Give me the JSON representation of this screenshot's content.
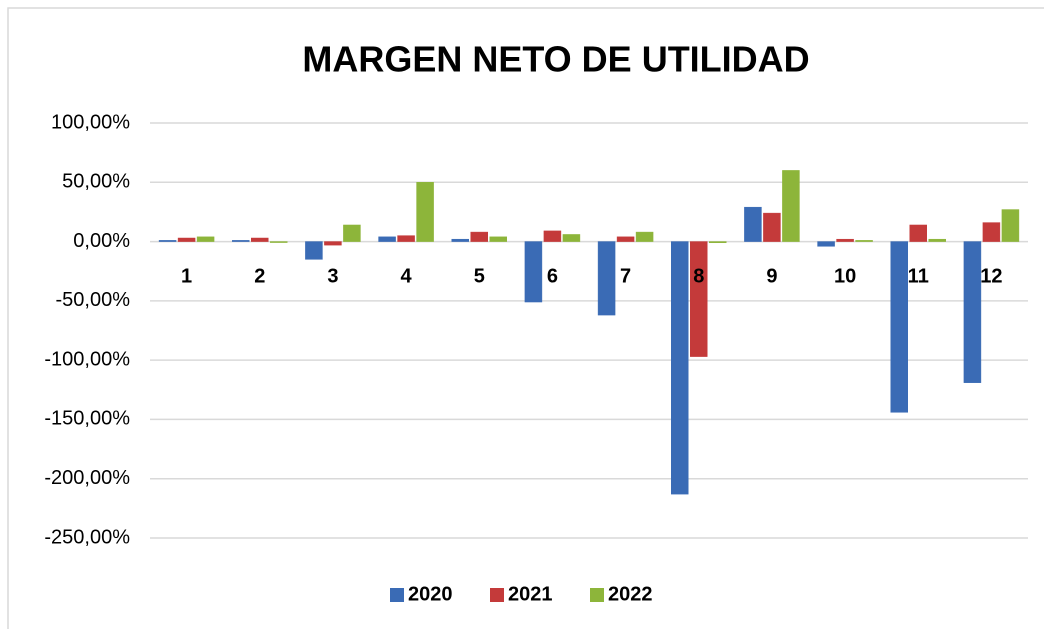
{
  "chart_data": {
    "type": "bar",
    "title": "MARGEN NETO DE UTILIDAD",
    "categories": [
      "1",
      "2",
      "3",
      "4",
      "5",
      "6",
      "7",
      "8",
      "9",
      "10",
      "11",
      "12"
    ],
    "series": [
      {
        "name": "2020",
        "color": "#3a6bb5",
        "values": [
          1,
          1,
          -15,
          4,
          2,
          -51,
          -62,
          -213,
          29,
          -4,
          -144,
          -119
        ]
      },
      {
        "name": "2021",
        "color": "#c43a3a",
        "values": [
          3,
          3,
          -3,
          5,
          8,
          9,
          4,
          -97,
          24,
          2,
          14,
          16
        ]
      },
      {
        "name": "2022",
        "color": "#8db53a",
        "values": [
          4,
          0,
          14,
          50,
          4,
          6,
          8,
          -1,
          60,
          1,
          2,
          27
        ]
      }
    ],
    "ylim": [
      -250,
      100
    ],
    "yticks": [
      {
        "value": -250,
        "label": "-250,00%"
      },
      {
        "value": -200,
        "label": "-200,00%"
      },
      {
        "value": -150,
        "label": "-150,00%"
      },
      {
        "value": -100,
        "label": "-100,00%"
      },
      {
        "value": -50,
        "label": "-50,00%"
      },
      {
        "value": 0,
        "label": "0,00%"
      },
      {
        "value": 50,
        "label": "50,00%"
      },
      {
        "value": 100,
        "label": "100,00%"
      }
    ],
    "grid": true,
    "legend": "bottom"
  }
}
